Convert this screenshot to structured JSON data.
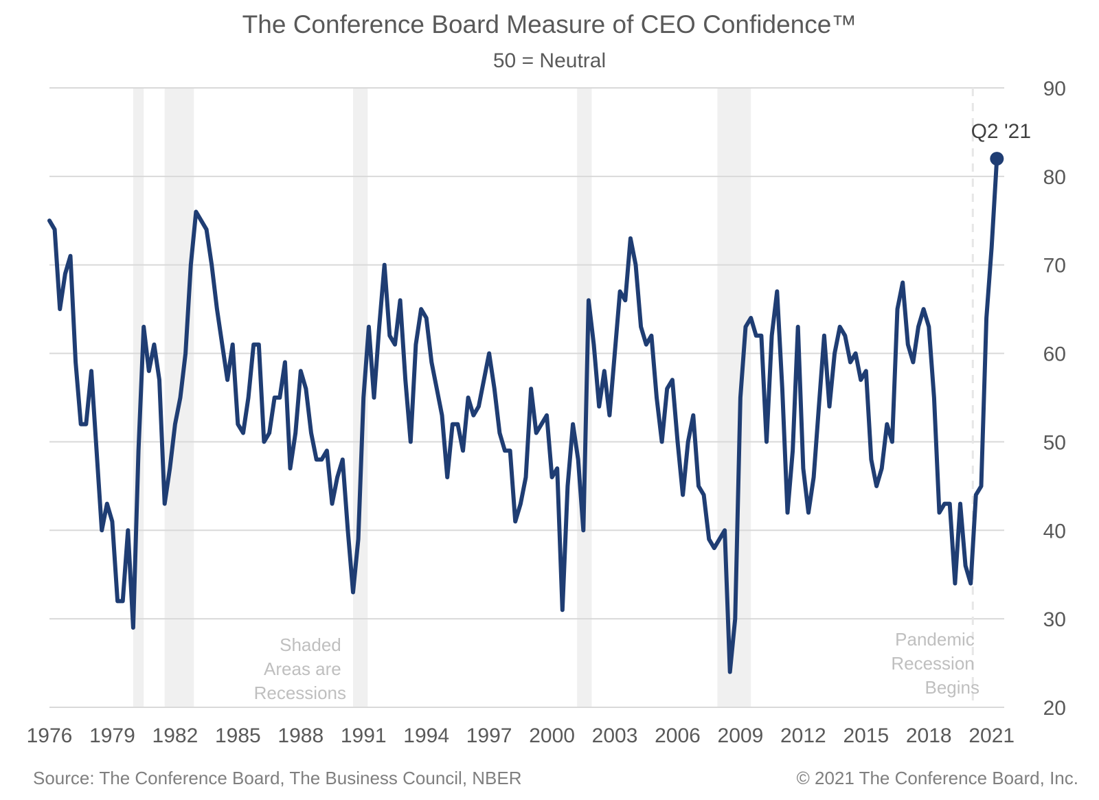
{
  "chart_data": {
    "type": "line",
    "title": "The Conference Board Measure of CEO Confidence™",
    "subtitle": "50 = Neutral",
    "ylim": [
      20,
      90
    ],
    "yticks": [
      20,
      30,
      40,
      50,
      60,
      70,
      80,
      90
    ],
    "xlim": [
      1976,
      2021.6
    ],
    "xticks": [
      1976,
      1979,
      1982,
      1985,
      1988,
      1991,
      1994,
      1997,
      2000,
      2003,
      2006,
      2009,
      2012,
      2015,
      2018,
      2021
    ],
    "grid": true,
    "y_axis_side": "right",
    "recessions": [
      [
        1980.0,
        1980.5
      ],
      [
        1981.5,
        1982.9
      ],
      [
        1990.5,
        1991.2
      ],
      [
        2001.2,
        2001.9
      ],
      [
        2007.9,
        2009.5
      ]
    ],
    "pandemic_marker_x": 2020.1,
    "series": [
      {
        "name": "",
        "color": "#1f3d73",
        "points": [
          [
            1976.0,
            75
          ],
          [
            1976.25,
            74
          ],
          [
            1976.5,
            65
          ],
          [
            1976.75,
            69
          ],
          [
            1977.0,
            71
          ],
          [
            1977.25,
            59
          ],
          [
            1977.5,
            52
          ],
          [
            1977.75,
            52
          ],
          [
            1978.0,
            58
          ],
          [
            1978.25,
            49
          ],
          [
            1978.5,
            40
          ],
          [
            1978.75,
            43
          ],
          [
            1979.0,
            41
          ],
          [
            1979.25,
            32
          ],
          [
            1979.5,
            32
          ],
          [
            1979.75,
            40
          ],
          [
            1980.0,
            29
          ],
          [
            1980.25,
            49
          ],
          [
            1980.5,
            63
          ],
          [
            1980.75,
            58
          ],
          [
            1981.0,
            61
          ],
          [
            1981.25,
            57
          ],
          [
            1981.5,
            43
          ],
          [
            1981.75,
            47
          ],
          [
            1982.0,
            52
          ],
          [
            1982.25,
            55
          ],
          [
            1982.5,
            60
          ],
          [
            1982.75,
            70
          ],
          [
            1983.0,
            76
          ],
          [
            1983.25,
            75
          ],
          [
            1983.5,
            74
          ],
          [
            1983.75,
            70
          ],
          [
            1984.0,
            65
          ],
          [
            1984.25,
            61
          ],
          [
            1984.5,
            57
          ],
          [
            1984.75,
            61
          ],
          [
            1985.0,
            52
          ],
          [
            1985.25,
            51
          ],
          [
            1985.5,
            55
          ],
          [
            1985.75,
            61
          ],
          [
            1986.0,
            61
          ],
          [
            1986.25,
            50
          ],
          [
            1986.5,
            51
          ],
          [
            1986.75,
            55
          ],
          [
            1987.0,
            55
          ],
          [
            1987.25,
            59
          ],
          [
            1987.5,
            47
          ],
          [
            1987.75,
            51
          ],
          [
            1988.0,
            58
          ],
          [
            1988.25,
            56
          ],
          [
            1988.5,
            51
          ],
          [
            1988.75,
            48
          ],
          [
            1989.0,
            48
          ],
          [
            1989.25,
            49
          ],
          [
            1989.5,
            43
          ],
          [
            1989.75,
            46
          ],
          [
            1990.0,
            48
          ],
          [
            1990.25,
            40
          ],
          [
            1990.5,
            33
          ],
          [
            1990.75,
            39
          ],
          [
            1991.0,
            55
          ],
          [
            1991.25,
            63
          ],
          [
            1991.5,
            55
          ],
          [
            1991.75,
            63
          ],
          [
            1992.0,
            70
          ],
          [
            1992.25,
            62
          ],
          [
            1992.5,
            61
          ],
          [
            1992.75,
            66
          ],
          [
            1993.0,
            57
          ],
          [
            1993.25,
            50
          ],
          [
            1993.5,
            61
          ],
          [
            1993.75,
            65
          ],
          [
            1994.0,
            64
          ],
          [
            1994.25,
            59
          ],
          [
            1994.5,
            56
          ],
          [
            1994.75,
            53
          ],
          [
            1995.0,
            46
          ],
          [
            1995.25,
            52
          ],
          [
            1995.5,
            52
          ],
          [
            1995.75,
            49
          ],
          [
            1996.0,
            55
          ],
          [
            1996.25,
            53
          ],
          [
            1996.5,
            54
          ],
          [
            1996.75,
            57
          ],
          [
            1997.0,
            60
          ],
          [
            1997.25,
            56
          ],
          [
            1997.5,
            51
          ],
          [
            1997.75,
            49
          ],
          [
            1998.0,
            49
          ],
          [
            1998.25,
            41
          ],
          [
            1998.5,
            43
          ],
          [
            1998.75,
            46
          ],
          [
            1999.0,
            56
          ],
          [
            1999.25,
            51
          ],
          [
            1999.5,
            52
          ],
          [
            1999.75,
            53
          ],
          [
            2000.0,
            46
          ],
          [
            2000.25,
            47
          ],
          [
            2000.5,
            31
          ],
          [
            2000.75,
            45
          ],
          [
            2001.0,
            52
          ],
          [
            2001.25,
            48
          ],
          [
            2001.5,
            40
          ],
          [
            2001.75,
            66
          ],
          [
            2002.0,
            61
          ],
          [
            2002.25,
            54
          ],
          [
            2002.5,
            58
          ],
          [
            2002.75,
            53
          ],
          [
            2003.0,
            60
          ],
          [
            2003.25,
            67
          ],
          [
            2003.5,
            66
          ],
          [
            2003.75,
            73
          ],
          [
            2004.0,
            70
          ],
          [
            2004.25,
            63
          ],
          [
            2004.5,
            61
          ],
          [
            2004.75,
            62
          ],
          [
            2005.0,
            55
          ],
          [
            2005.25,
            50
          ],
          [
            2005.5,
            56
          ],
          [
            2005.75,
            57
          ],
          [
            2006.0,
            50
          ],
          [
            2006.25,
            44
          ],
          [
            2006.5,
            50
          ],
          [
            2006.75,
            53
          ],
          [
            2007.0,
            45
          ],
          [
            2007.25,
            44
          ],
          [
            2007.5,
            39
          ],
          [
            2007.75,
            38
          ],
          [
            2008.0,
            39
          ],
          [
            2008.25,
            40
          ],
          [
            2008.5,
            24
          ],
          [
            2008.75,
            30
          ],
          [
            2009.0,
            55
          ],
          [
            2009.25,
            63
          ],
          [
            2009.5,
            64
          ],
          [
            2009.75,
            62
          ],
          [
            2010.0,
            62
          ],
          [
            2010.25,
            50
          ],
          [
            2010.5,
            62
          ],
          [
            2010.75,
            67
          ],
          [
            2011.0,
            56
          ],
          [
            2011.25,
            42
          ],
          [
            2011.5,
            49
          ],
          [
            2011.75,
            63
          ],
          [
            2012.0,
            47
          ],
          [
            2012.25,
            42
          ],
          [
            2012.5,
            46
          ],
          [
            2012.75,
            54
          ],
          [
            2013.0,
            62
          ],
          [
            2013.25,
            54
          ],
          [
            2013.5,
            60
          ],
          [
            2013.75,
            63
          ],
          [
            2014.0,
            62
          ],
          [
            2014.25,
            59
          ],
          [
            2014.5,
            60
          ],
          [
            2014.75,
            57
          ],
          [
            2015.0,
            58
          ],
          [
            2015.25,
            48
          ],
          [
            2015.5,
            45
          ],
          [
            2015.75,
            47
          ],
          [
            2016.0,
            52
          ],
          [
            2016.25,
            50
          ],
          [
            2016.5,
            65
          ],
          [
            2016.75,
            68
          ],
          [
            2017.0,
            61
          ],
          [
            2017.25,
            59
          ],
          [
            2017.5,
            63
          ],
          [
            2017.75,
            65
          ],
          [
            2018.0,
            63
          ],
          [
            2018.25,
            55
          ],
          [
            2018.5,
            42
          ],
          [
            2018.75,
            43
          ],
          [
            2019.0,
            43
          ],
          [
            2019.25,
            34
          ],
          [
            2019.5,
            43
          ],
          [
            2019.75,
            36
          ],
          [
            2020.0,
            34
          ],
          [
            2020.25,
            44
          ],
          [
            2020.5,
            45
          ],
          [
            2020.75,
            64
          ],
          [
            2021.0,
            72
          ],
          [
            2021.25,
            82
          ]
        ]
      }
    ],
    "end_label": "Q2 '21",
    "recession_note": [
      "Shaded",
      "Areas are",
      "Recessions"
    ],
    "pandemic_note": [
      "Pandemic",
      "Recession",
      "Begins"
    ]
  },
  "footer": {
    "source": "Source: The Conference Board, The Business Council, NBER",
    "copyright": "© 2021 The Conference Board, Inc."
  }
}
